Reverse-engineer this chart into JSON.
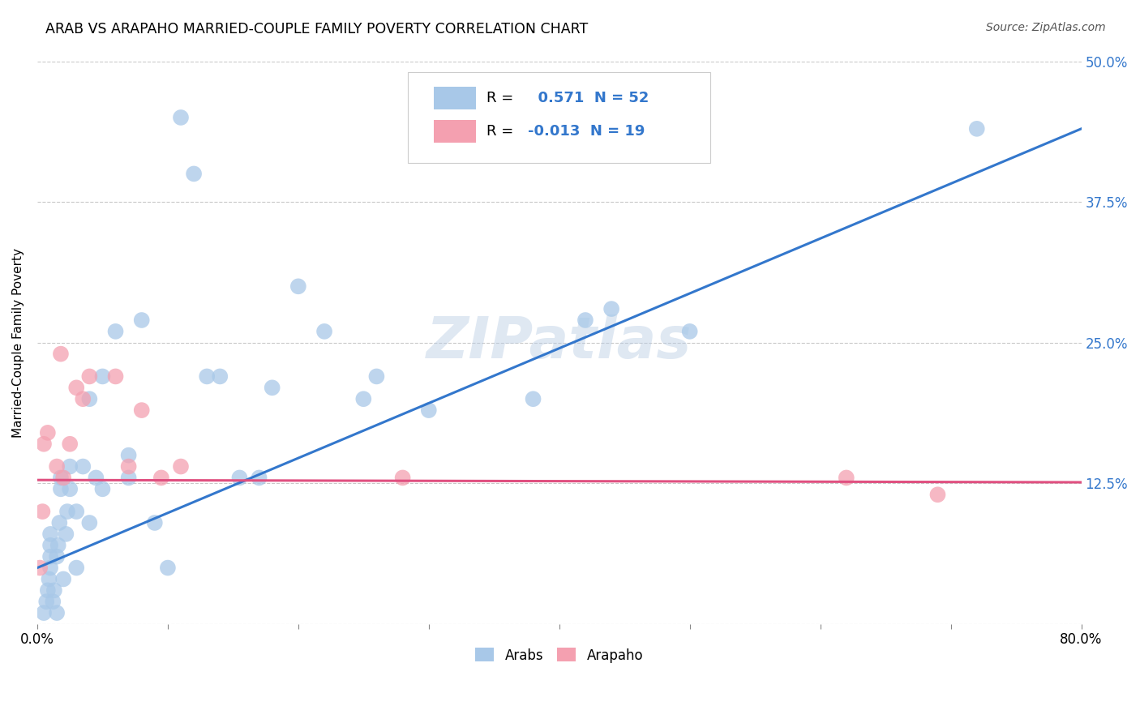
{
  "title": "ARAB VS ARAPAHO MARRIED-COUPLE FAMILY POVERTY CORRELATION CHART",
  "source": "Source: ZipAtlas.com",
  "ylabel": "Married-Couple Family Poverty",
  "xlim": [
    0.0,
    0.8
  ],
  "ylim": [
    0.0,
    0.5
  ],
  "xticks": [
    0.0,
    0.1,
    0.2,
    0.3,
    0.4,
    0.5,
    0.6,
    0.7,
    0.8
  ],
  "yticks": [
    0.0,
    0.125,
    0.25,
    0.375,
    0.5
  ],
  "arab_color": "#a8c8e8",
  "arapaho_color": "#f4a0b0",
  "arab_line_color": "#3377cc",
  "arapaho_line_color": "#e05080",
  "watermark": "ZIPatlas",
  "legend_r_arab": " 0.571",
  "legend_n_arab": "52",
  "legend_r_arapaho": "-0.013",
  "legend_n_arapaho": "19",
  "arab_line_x0": 0.0,
  "arab_line_y0": 0.05,
  "arab_line_x1": 0.8,
  "arab_line_y1": 0.44,
  "arapaho_line_x0": 0.0,
  "arapaho_line_y0": 0.128,
  "arapaho_line_x1": 0.8,
  "arapaho_line_y1": 0.126,
  "arab_x": [
    0.005,
    0.007,
    0.008,
    0.009,
    0.01,
    0.01,
    0.01,
    0.01,
    0.012,
    0.013,
    0.015,
    0.015,
    0.016,
    0.017,
    0.018,
    0.018,
    0.02,
    0.022,
    0.023,
    0.025,
    0.025,
    0.03,
    0.03,
    0.035,
    0.04,
    0.04,
    0.045,
    0.05,
    0.05,
    0.06,
    0.07,
    0.07,
    0.08,
    0.09,
    0.1,
    0.11,
    0.12,
    0.13,
    0.14,
    0.155,
    0.17,
    0.18,
    0.2,
    0.22,
    0.25,
    0.26,
    0.3,
    0.38,
    0.42,
    0.44,
    0.5,
    0.72
  ],
  "arab_y": [
    0.01,
    0.02,
    0.03,
    0.04,
    0.05,
    0.06,
    0.07,
    0.08,
    0.02,
    0.03,
    0.01,
    0.06,
    0.07,
    0.09,
    0.12,
    0.13,
    0.04,
    0.08,
    0.1,
    0.12,
    0.14,
    0.05,
    0.1,
    0.14,
    0.09,
    0.2,
    0.13,
    0.12,
    0.22,
    0.26,
    0.13,
    0.15,
    0.27,
    0.09,
    0.05,
    0.45,
    0.4,
    0.22,
    0.22,
    0.13,
    0.13,
    0.21,
    0.3,
    0.26,
    0.2,
    0.22,
    0.19,
    0.2,
    0.27,
    0.28,
    0.26,
    0.44
  ],
  "arapaho_x": [
    0.002,
    0.004,
    0.005,
    0.008,
    0.015,
    0.018,
    0.02,
    0.025,
    0.03,
    0.035,
    0.04,
    0.06,
    0.07,
    0.08,
    0.095,
    0.11,
    0.28,
    0.62,
    0.69
  ],
  "arapaho_y": [
    0.05,
    0.1,
    0.16,
    0.17,
    0.14,
    0.24,
    0.13,
    0.16,
    0.21,
    0.2,
    0.22,
    0.22,
    0.14,
    0.19,
    0.13,
    0.14,
    0.13,
    0.13,
    0.115
  ]
}
